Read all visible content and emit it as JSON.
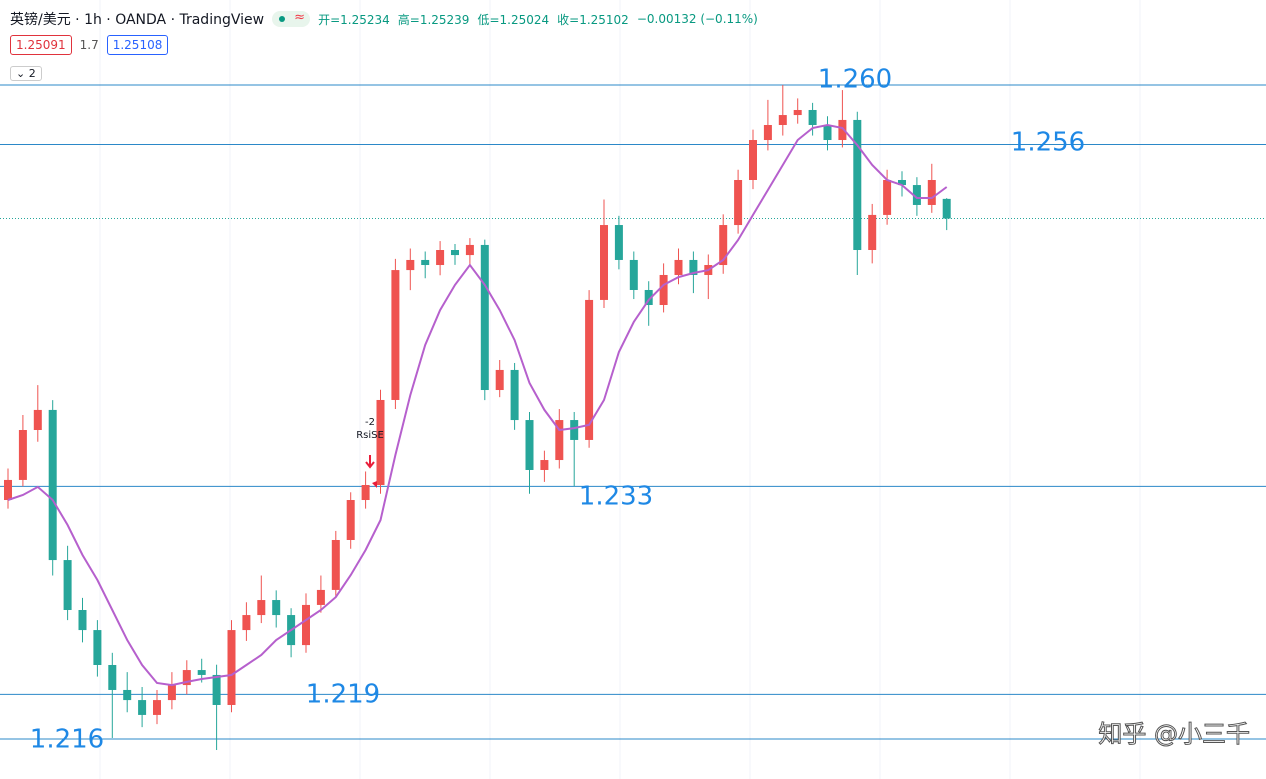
{
  "header": {
    "symbol": "英镑/美元 · 1h · OANDA · TradingView",
    "ohlc": [
      "开=1.25234",
      "高=1.25239",
      "低=1.25024",
      "收=1.25102",
      "−0.00132 (−0.11%)"
    ],
    "bid": "1.25091",
    "spread": "1.7",
    "ask": "1.25108",
    "collapse": "2"
  },
  "chart_data": {
    "type": "candlestick",
    "ylim": [
      1.21331,
      1.26572
    ],
    "up_color": "#ef5350",
    "down_color": "#26a69a",
    "level_color": "#2b88c8",
    "level_label_color": "#1e88e5",
    "levels": [
      {
        "value": 1.26,
        "label": "1.260"
      },
      {
        "value": 1.256,
        "label": "1.256"
      },
      {
        "value": 1.233,
        "label": "1.233"
      },
      {
        "value": 1.219,
        "label": "1.219"
      },
      {
        "value": 1.216,
        "label": "1.216"
      }
    ],
    "candles": [
      [
        1.23208,
        1.2342,
        1.2315,
        1.23343
      ],
      [
        1.23343,
        1.2378,
        1.233,
        1.23679
      ],
      [
        1.23679,
        1.23981,
        1.236,
        1.23814
      ],
      [
        1.23814,
        1.2388,
        1.227,
        1.22804
      ],
      [
        1.22804,
        1.229,
        1.224,
        1.22468
      ],
      [
        1.22468,
        1.2255,
        1.2225,
        1.22333
      ],
      [
        1.22333,
        1.224,
        1.2202,
        1.22098
      ],
      [
        1.22098,
        1.2218,
        1.21607,
        1.2193
      ],
      [
        1.2193,
        1.2205,
        1.2178,
        1.21862
      ],
      [
        1.21862,
        1.2195,
        1.2168,
        1.21762
      ],
      [
        1.21762,
        1.2193,
        1.217,
        1.21862
      ],
      [
        1.21862,
        1.2205,
        1.218,
        1.21963
      ],
      [
        1.21963,
        1.2213,
        1.219,
        1.22064
      ],
      [
        1.22064,
        1.2214,
        1.2198,
        1.22031
      ],
      [
        1.22031,
        1.221,
        1.21526,
        1.21829
      ],
      [
        1.21829,
        1.224,
        1.2178,
        1.22333
      ],
      [
        1.22333,
        1.2252,
        1.2226,
        1.22434
      ],
      [
        1.22434,
        1.227,
        1.2238,
        1.22535
      ],
      [
        1.22535,
        1.226,
        1.2235,
        1.22434
      ],
      [
        1.22434,
        1.2248,
        1.2215,
        1.22232
      ],
      [
        1.22232,
        1.2258,
        1.2218,
        1.22502
      ],
      [
        1.22502,
        1.227,
        1.2245,
        1.22603
      ],
      [
        1.22603,
        1.23,
        1.2255,
        1.22939
      ],
      [
        1.22939,
        1.2326,
        1.2288,
        1.23208
      ],
      [
        1.23208,
        1.234,
        1.2315,
        1.23309
      ],
      [
        1.23309,
        1.2395,
        1.2325,
        1.23881
      ],
      [
        1.23881,
        1.2483,
        1.2382,
        1.24755
      ],
      [
        1.24755,
        1.249,
        1.2462,
        1.24823
      ],
      [
        1.24823,
        1.2488,
        1.247,
        1.24789
      ],
      [
        1.24789,
        1.2495,
        1.2472,
        1.2489
      ],
      [
        1.2489,
        1.2493,
        1.2479,
        1.24856
      ],
      [
        1.24856,
        1.2497,
        1.2478,
        1.24924
      ],
      [
        1.24924,
        1.2496,
        1.2388,
        1.23948
      ],
      [
        1.23948,
        1.2415,
        1.239,
        1.24083
      ],
      [
        1.24083,
        1.2413,
        1.2368,
        1.23746
      ],
      [
        1.23746,
        1.238,
        1.2325,
        1.2341
      ],
      [
        1.2341,
        1.2354,
        1.2333,
        1.23477
      ],
      [
        1.23477,
        1.2382,
        1.2342,
        1.23746
      ],
      [
        1.23746,
        1.238,
        1.233,
        1.23612
      ],
      [
        1.23612,
        1.2462,
        1.2356,
        1.24554
      ],
      [
        1.24554,
        1.2523,
        1.245,
        1.25058
      ],
      [
        1.25058,
        1.2512,
        1.2476,
        1.24823
      ],
      [
        1.24823,
        1.2488,
        1.2456,
        1.24621
      ],
      [
        1.24621,
        1.2468,
        1.2438,
        1.2452
      ],
      [
        1.2452,
        1.248,
        1.2447,
        1.24722
      ],
      [
        1.24722,
        1.249,
        1.2466,
        1.24823
      ],
      [
        1.24823,
        1.2488,
        1.246,
        1.24722
      ],
      [
        1.24722,
        1.2486,
        1.2456,
        1.24789
      ],
      [
        1.24789,
        1.2513,
        1.2473,
        1.25058
      ],
      [
        1.25058,
        1.2543,
        1.25,
        1.25361
      ],
      [
        1.25361,
        1.257,
        1.253,
        1.2563
      ],
      [
        1.2563,
        1.259,
        1.2556,
        1.25731
      ],
      [
        1.25731,
        1.26,
        1.2566,
        1.25798
      ],
      [
        1.25798,
        1.2591,
        1.2574,
        1.25832
      ],
      [
        1.25832,
        1.2588,
        1.2566,
        1.25731
      ],
      [
        1.25731,
        1.2579,
        1.2556,
        1.2563
      ],
      [
        1.2563,
        1.25966,
        1.2558,
        1.25765
      ],
      [
        1.25765,
        1.2582,
        1.24722,
        1.2489
      ],
      [
        1.2489,
        1.252,
        1.248,
        1.25126
      ],
      [
        1.25126,
        1.2543,
        1.2506,
        1.25361
      ],
      [
        1.25361,
        1.2542,
        1.2525,
        1.25327
      ],
      [
        1.25327,
        1.2538,
        1.2512,
        1.25193
      ],
      [
        1.25193,
        1.2547,
        1.2514,
        1.25361
      ],
      [
        1.25234,
        1.25239,
        1.25024,
        1.25102
      ]
    ],
    "ma": {
      "color": "#b660cd",
      "values": [
        1.23208,
        1.23242,
        1.23296,
        1.23208,
        1.2304,
        1.22838,
        1.2267,
        1.22468,
        1.22266,
        1.22098,
        1.21977,
        1.21963,
        1.21984,
        1.22004,
        1.22017,
        1.22031,
        1.22098,
        1.22165,
        1.22266,
        1.22333,
        1.22401,
        1.22468,
        1.22555,
        1.22703,
        1.22872,
        1.23073,
        1.23511,
        1.23914,
        1.24251,
        1.24486,
        1.24655,
        1.24789,
        1.24655,
        1.24486,
        1.24284,
        1.23995,
        1.23814,
        1.23679,
        1.23692,
        1.23713,
        1.23881,
        1.24204,
        1.24406,
        1.24554,
        1.24655,
        1.24708,
        1.24735,
        1.24755,
        1.24823,
        1.24957,
        1.25126,
        1.25294,
        1.25462,
        1.2563,
        1.25711,
        1.25731,
        1.25711,
        1.25596,
        1.25462,
        1.25361,
        1.25327,
        1.2524,
        1.2524,
        1.25314
      ]
    },
    "signal": [
      "-2",
      "RsiSE"
    ],
    "watermark": "知乎 @小三千"
  }
}
